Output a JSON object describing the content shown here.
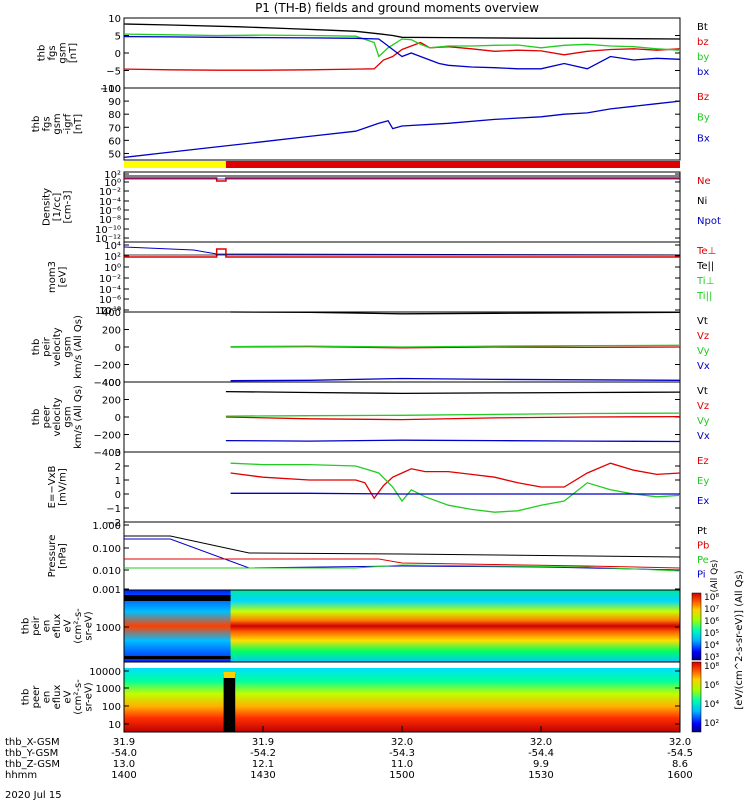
{
  "title": "P1 (TH-B) fields and ground moments overview",
  "date_label": "2020 Jul 15",
  "colors": {
    "black": "#000000",
    "red": "#e00000",
    "green": "#22cc22",
    "blue": "#0000c8",
    "yellow": "#ffff00"
  },
  "chart_data": {
    "type": "line",
    "time_range": [
      "14:00",
      "16:00"
    ],
    "xaxis_rows": [
      {
        "label": "thb_X-GSM",
        "values": [
          "31.9",
          "31.9",
          "32.0",
          "32.0",
          "32.0"
        ]
      },
      {
        "label": "thb_Y-GSM",
        "values": [
          "-54.0",
          "-54.2",
          "-54.3",
          "-54.4",
          "-54.5"
        ]
      },
      {
        "label": "thb_Z-GSM",
        "values": [
          "13.0",
          "12.1",
          "11.0",
          "9.9",
          "8.6"
        ]
      },
      {
        "label": "hhmm",
        "values": [
          "1400",
          "1430",
          "1500",
          "1530",
          "1600"
        ]
      }
    ],
    "panels": [
      {
        "id": "fgs",
        "ylabel": [
          "thb",
          "fgs",
          "gsm",
          "[nT]"
        ],
        "ylim": [
          -10,
          10
        ],
        "yticks": [
          "10",
          "5",
          "0",
          "−5",
          "−10"
        ],
        "legend": [
          {
            "text": "Bt",
            "color": "black"
          },
          {
            "text": "bz",
            "color": "red"
          },
          {
            "text": "by",
            "color": "green"
          },
          {
            "text": "bx",
            "color": "blue"
          }
        ],
        "series": [
          {
            "color": "black",
            "x": [
              0,
              10,
              25,
              35,
              45,
              50,
              55,
              58,
              60,
              70,
              90,
              100,
              110,
              120
            ],
            "y": [
              8.3,
              8.0,
              7.5,
              7.0,
              6.5,
              6.2,
              5.5,
              5,
              4.5,
              4.4,
              4.2,
              4.2,
              4.1,
              4.0
            ]
          },
          {
            "color": "red",
            "x": [
              0,
              10,
              20,
              30,
              40,
              50,
              54,
              56,
              58,
              60,
              62,
              64,
              66,
              70,
              75,
              80,
              85,
              90,
              95,
              100,
              105,
              110,
              115,
              120
            ],
            "y": [
              -4.6,
              -4.8,
              -4.9,
              -4.9,
              -4.8,
              -4.6,
              -4.5,
              -2,
              -1,
              1,
              2,
              3,
              1.5,
              1.8,
              1.2,
              0.5,
              0.8,
              0.6,
              -0.5,
              0.5,
              1,
              1.2,
              0.8,
              1.2
            ]
          },
          {
            "color": "green",
            "x": [
              0,
              10,
              20,
              30,
              40,
              50,
              54,
              55,
              57,
              60,
              62,
              64,
              66,
              70,
              75,
              80,
              85,
              90,
              95,
              100,
              105,
              110,
              115,
              120
            ],
            "y": [
              5.4,
              5.2,
              5.0,
              5.1,
              5.0,
              4.8,
              3.0,
              -1.0,
              1.5,
              4.0,
              3.8,
              2.5,
              1.5,
              2.0,
              2.0,
              2.2,
              2.3,
              1.5,
              2.2,
              2.5,
              2.0,
              1.8,
              1.2,
              0.8
            ]
          },
          {
            "color": "blue",
            "x": [
              0,
              10,
              20,
              30,
              40,
              50,
              55,
              56,
              58,
              60,
              62,
              64,
              66,
              68,
              70,
              75,
              80,
              85,
              90,
              95,
              100,
              105,
              110,
              115,
              120
            ],
            "y": [
              4.7,
              4.6,
              4.5,
              4.4,
              4.3,
              4.2,
              4.0,
              3.0,
              1.0,
              -1.0,
              0.0,
              -1.0,
              -2.0,
              -3.0,
              -3.5,
              -4.0,
              -4.2,
              -4.5,
              -4.5,
              -3.0,
              -4.5,
              -1.0,
              -2.0,
              -1.5,
              -1.8
            ]
          }
        ]
      },
      {
        "id": "btot",
        "ylabel": [
          "thb",
          "fgs",
          "gsm",
          "-igrf",
          "[nT]"
        ],
        "ylim": [
          45,
          100
        ],
        "yticks": [
          "100",
          "90",
          "80",
          "70",
          "60",
          "50"
        ],
        "ytick_values": [
          100,
          90,
          80,
          70,
          60,
          50
        ],
        "legend": [
          {
            "text": "Bz",
            "color": "red"
          },
          {
            "text": "By",
            "color": "green"
          },
          {
            "text": "Bx",
            "color": "blue"
          }
        ],
        "series": [
          {
            "color": "blue",
            "x": [
              0,
              10,
              20,
              30,
              40,
              50,
              55,
              57,
              58,
              60,
              70,
              80,
              90,
              95,
              100,
              105,
              110,
              115,
              120
            ],
            "y": [
              47,
              51,
              55,
              59,
              63,
              67,
              73,
              75,
              69,
              71,
              73,
              76,
              78,
              80,
              81,
              84,
              86,
              88,
              90
            ]
          }
        ]
      },
      {
        "id": "density",
        "ylabel": [
          "Density",
          "[1/cc]",
          "[cm-3]"
        ],
        "ylim": "log",
        "yticks": [
          "10²",
          "10⁰",
          "10⁻²",
          "10⁻⁴",
          "10⁻⁶",
          "10⁻⁸",
          "10⁻¹⁰",
          "10⁻¹²"
        ],
        "legend": [
          {
            "text": "Ne",
            "color": "red"
          },
          {
            "text": "Ni",
            "color": "black"
          },
          {
            "text": "Npot",
            "color": "blue"
          }
        ]
      },
      {
        "id": "temp",
        "ylabel": [
          "mom3",
          "[eV]"
        ],
        "ylim": "log",
        "yticks": [
          "10⁴",
          "10²",
          "10⁰",
          "10⁻²",
          "10⁻⁴",
          "10⁻⁶",
          "10⁻⁸",
          "10⁻¹⁰"
        ],
        "legend": [
          {
            "text": "Te⊥",
            "color": "red"
          },
          {
            "text": "Te||",
            "color": "black"
          },
          {
            "text": "Ti⊥",
            "color": "green"
          },
          {
            "text": "Ti||",
            "color": "green"
          }
        ]
      },
      {
        "id": "vi",
        "ylabel": [
          "thb",
          "peir",
          "velocity",
          "gsm",
          "km/s (All Qs)"
        ],
        "ylim": [
          -400,
          400
        ],
        "yticks": [
          "400",
          "200",
          "0",
          "−200",
          "−400"
        ],
        "ytick_values": [
          400,
          200,
          0,
          -200,
          -400
        ],
        "legend": [
          {
            "text": "Vt",
            "color": "black"
          },
          {
            "text": "Vz",
            "color": "red"
          },
          {
            "text": "Vy",
            "color": "green"
          },
          {
            "text": "Vx",
            "color": "blue"
          }
        ],
        "series": [
          {
            "color": "black",
            "x": [
              23,
              40,
              60,
              80,
              100,
              120
            ],
            "y": [
              400,
              395,
              380,
              385,
              390,
              395
            ]
          },
          {
            "color": "red",
            "x": [
              23,
              40,
              60,
              80,
              100,
              120
            ],
            "y": [
              0,
              5,
              -10,
              0,
              -5,
              0
            ]
          },
          {
            "color": "green",
            "x": [
              23,
              40,
              60,
              80,
              100,
              120
            ],
            "y": [
              5,
              10,
              0,
              10,
              15,
              20
            ]
          },
          {
            "color": "blue",
            "x": [
              23,
              40,
              60,
              80,
              100,
              120
            ],
            "y": [
              -385,
              -380,
              -360,
              -370,
              -375,
              -380
            ]
          }
        ]
      },
      {
        "id": "ve",
        "ylabel": [
          "thb",
          "peer",
          "velocity",
          "gsm",
          "km/s (All Qs)"
        ],
        "ylim": [
          -400,
          400
        ],
        "yticks": [
          "400",
          "200",
          "0",
          "−200",
          "−400"
        ],
        "ytick_values": [
          400,
          200,
          0,
          -200,
          -400
        ],
        "legend": [
          {
            "text": "Vt",
            "color": "black"
          },
          {
            "text": "Vz",
            "color": "red"
          },
          {
            "text": "Vy",
            "color": "green"
          },
          {
            "text": "Vx",
            "color": "blue"
          }
        ],
        "series": [
          {
            "color": "black",
            "x": [
              22,
              40,
              60,
              80,
              100,
              120
            ],
            "y": [
              290,
              280,
              270,
              275,
              280,
              285
            ]
          },
          {
            "color": "red",
            "x": [
              22,
              40,
              60,
              80,
              100,
              120
            ],
            "y": [
              0,
              -20,
              -30,
              -10,
              0,
              5
            ]
          },
          {
            "color": "green",
            "x": [
              22,
              40,
              60,
              80,
              100,
              120
            ],
            "y": [
              10,
              15,
              20,
              30,
              40,
              45
            ]
          },
          {
            "color": "blue",
            "x": [
              22,
              40,
              60,
              80,
              100,
              120
            ],
            "y": [
              -270,
              -275,
              -265,
              -270,
              -275,
              -280
            ]
          }
        ]
      },
      {
        "id": "efield",
        "ylabel": [
          "E=−VxB",
          "[mV/m]"
        ],
        "ylim": [
          -2,
          3
        ],
        "yticks": [
          "3",
          "2",
          "1",
          "0",
          "−1",
          "−2"
        ],
        "ytick_values": [
          3,
          2,
          1,
          0,
          -1,
          -2
        ],
        "legend": [
          {
            "text": "Ez",
            "color": "red"
          },
          {
            "text": "Ey",
            "color": "green"
          },
          {
            "text": "Ex",
            "color": "blue"
          }
        ],
        "series": [
          {
            "color": "red",
            "x": [
              23,
              30,
              40,
              50,
              52,
              54,
              56,
              58,
              60,
              62,
              65,
              70,
              75,
              80,
              85,
              90,
              95,
              100,
              105,
              110,
              115,
              120
            ],
            "y": [
              1.5,
              1.2,
              1.0,
              1.0,
              0.8,
              -0.3,
              0.6,
              1.2,
              1.5,
              1.8,
              1.6,
              1.6,
              1.4,
              1.2,
              0.8,
              0.5,
              0.5,
              1.5,
              2.2,
              1.7,
              1.4,
              1.5
            ]
          },
          {
            "color": "green",
            "x": [
              23,
              30,
              40,
              50,
              55,
              58,
              60,
              62,
              65,
              70,
              75,
              80,
              85,
              90,
              95,
              100,
              105,
              110,
              115,
              120
            ],
            "y": [
              2.2,
              2.1,
              2.1,
              2.0,
              1.5,
              0.5,
              -0.5,
              0.3,
              -0.2,
              -0.8,
              -1.1,
              -1.3,
              -1.2,
              -0.8,
              -0.5,
              0.8,
              0.3,
              0.0,
              -0.2,
              -0.1
            ]
          },
          {
            "color": "blue",
            "x": [
              23,
              40,
              60,
              80,
              100,
              120
            ],
            "y": [
              0.05,
              0.05,
              0.0,
              0.0,
              0.0,
              0.0
            ]
          }
        ]
      },
      {
        "id": "pressure",
        "ylabel": [
          "Pressure",
          "[nPa]"
        ],
        "ylim": "log",
        "yticks": [
          "1.000",
          "0.100",
          "0.010",
          "0.001"
        ],
        "legend": [
          {
            "text": "Pt",
            "color": "black"
          },
          {
            "text": "Pb",
            "color": "red"
          },
          {
            "text": "Pe",
            "color": "green"
          },
          {
            "text": "Pi",
            "color": "blue"
          }
        ],
        "right_label": "(All Qs)"
      },
      {
        "id": "ion_spec",
        "ylabel": [
          "thb",
          "peir",
          "en",
          "eflux",
          "eV",
          "(cm²-s-",
          "sr-eV)"
        ],
        "yticks": [
          "1000"
        ],
        "colorbar_ticks": [
          "10⁸",
          "10⁷",
          "10⁶",
          "10⁵",
          "10⁴",
          "10³"
        ]
      },
      {
        "id": "elec_spec",
        "ylabel": [
          "thb",
          "peer",
          "en",
          "eflux",
          "eV",
          "(cm²-s-",
          "sr-eV)"
        ],
        "yticks": [
          "10000",
          "1000",
          "100",
          "10"
        ],
        "colorbar_ticks": [
          "10⁸",
          "10⁶",
          "10⁴",
          "10²"
        ]
      }
    ],
    "colorbar_label": "[eV/(cm^2-s-sr-eV)] (All Qs)"
  }
}
